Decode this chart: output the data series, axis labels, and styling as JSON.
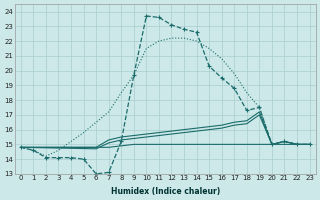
{
  "xlabel": "Humidex (Indice chaleur)",
  "xlim": [
    -0.5,
    23.5
  ],
  "ylim": [
    13,
    24.5
  ],
  "yticks": [
    13,
    14,
    15,
    16,
    17,
    18,
    19,
    20,
    21,
    22,
    23,
    24
  ],
  "xticks": [
    0,
    1,
    2,
    3,
    4,
    5,
    6,
    7,
    8,
    9,
    10,
    11,
    12,
    13,
    14,
    15,
    16,
    17,
    18,
    19,
    20,
    21,
    22,
    23
  ],
  "bg_color": "#cce8e8",
  "grid_color": "#aacece",
  "line_color": "#1a6b6b",
  "curve_dashed": {
    "x": [
      0,
      1,
      2,
      3,
      4,
      5,
      6,
      7,
      8,
      9,
      10,
      11,
      12,
      13,
      14,
      15,
      16,
      17,
      18,
      19,
      20,
      21,
      22,
      23
    ],
    "y": [
      14.8,
      14.6,
      14.1,
      14.1,
      14.1,
      14.0,
      13.0,
      13.1,
      15.2,
      19.7,
      23.7,
      23.6,
      23.1,
      22.8,
      22.6,
      20.3,
      19.5,
      18.8,
      17.3,
      17.5,
      15.0,
      15.2,
      15.0,
      15.0
    ]
  },
  "curve_dotted": {
    "x": [
      0,
      1,
      2,
      3,
      4,
      5,
      6,
      7,
      8,
      9,
      10,
      11,
      12,
      13,
      14,
      15,
      16,
      17,
      18,
      19,
      20,
      21,
      22,
      23
    ],
    "y": [
      14.8,
      14.6,
      14.2,
      14.6,
      15.2,
      15.8,
      16.5,
      17.2,
      18.5,
      19.7,
      21.5,
      22.0,
      22.2,
      22.2,
      22.0,
      21.5,
      20.8,
      19.8,
      18.5,
      17.5,
      15.0,
      15.2,
      15.0,
      15.0
    ]
  },
  "line_rising1": {
    "x": [
      0,
      6,
      7,
      8,
      9,
      10,
      11,
      12,
      13,
      14,
      15,
      16,
      17,
      18,
      19,
      20,
      21,
      22,
      23
    ],
    "y": [
      14.8,
      14.8,
      15.3,
      15.5,
      15.6,
      15.7,
      15.8,
      15.9,
      16.0,
      16.1,
      16.2,
      16.3,
      16.5,
      16.6,
      17.2,
      15.0,
      15.2,
      15.0,
      15.0
    ]
  },
  "line_rising2": {
    "x": [
      0,
      6,
      7,
      8,
      9,
      10,
      11,
      12,
      13,
      14,
      15,
      16,
      17,
      18,
      19,
      20,
      21,
      22,
      23
    ],
    "y": [
      14.8,
      14.7,
      15.1,
      15.3,
      15.4,
      15.5,
      15.6,
      15.7,
      15.8,
      15.9,
      16.0,
      16.1,
      16.3,
      16.4,
      17.0,
      15.0,
      15.2,
      15.0,
      15.0
    ]
  },
  "line_flat": {
    "x": [
      0,
      7,
      8,
      9,
      10,
      11,
      12,
      13,
      14,
      15,
      16,
      17,
      18,
      19,
      20,
      21,
      22,
      23
    ],
    "y": [
      14.8,
      14.8,
      14.9,
      15.0,
      15.0,
      15.0,
      15.0,
      15.0,
      15.0,
      15.0,
      15.0,
      15.0,
      15.0,
      15.0,
      15.0,
      15.0,
      15.0,
      15.0
    ]
  }
}
